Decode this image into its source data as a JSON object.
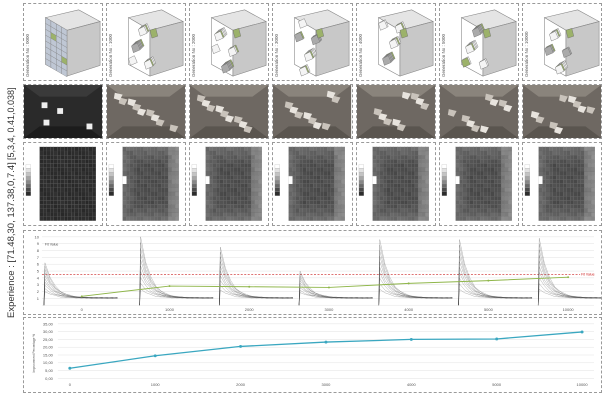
{
  "side_labels": {
    "experience": "Experience : [71.48,30, 137.38,0,7.4]",
    "top": "[5,3,4, 0.41,0.038]"
  },
  "generations": [
    "Generation No : 0000",
    "Generation No : 1000",
    "Generation No : 2000",
    "Generation No : 3000",
    "Generation No : 4000",
    "Generation No : 5000",
    "Generation No : 10000"
  ],
  "fitness_chart": {
    "ylabel": "Fit Value",
    "threshold_label": "Fit Value",
    "yticks": [
      "10",
      "9",
      "8",
      "7",
      "6",
      "5",
      "4",
      "3",
      "2",
      "1"
    ],
    "xticks": [
      "0",
      "1000",
      "2000",
      "3000",
      "4000",
      "5000",
      "10000"
    ],
    "colors": {
      "spikes": "#444444",
      "trend": "#8fb64a",
      "threshold": "#cc2222"
    }
  },
  "chart_data": [
    {
      "type": "line",
      "title": "",
      "xlabel": "",
      "ylabel": "Fit Value",
      "categories": [
        "0",
        "1000",
        "2000",
        "3000",
        "4000",
        "5000",
        "10000"
      ],
      "series": [
        {
          "values": [
            1.3,
            2.8,
            2.7,
            2.6,
            3.2,
            3.6,
            4.1
          ]
        }
      ],
      "spike_peaks": [
        6.2,
        10.0,
        8.5,
        5.0,
        9.6,
        9.6,
        9.8
      ],
      "threshold": 4.5,
      "ylim": [
        0,
        10
      ],
      "grid": true
    },
    {
      "type": "line",
      "title": "",
      "xlabel": "",
      "ylabel": "Improvement Percentage %",
      "categories": [
        "0",
        "1000",
        "2000",
        "3000",
        "4000",
        "5000",
        "10000"
      ],
      "series": [
        {
          "values": [
            6.5,
            14.5,
            20.5,
            23.3,
            25.0,
            25.3,
            29.8
          ]
        }
      ],
      "yticks": [
        "35,00",
        "30,00",
        "25,00",
        "20,00",
        "15,00",
        "10,00",
        "5,00",
        "0,00"
      ],
      "ylim": [
        0,
        35
      ],
      "grid": true,
      "color": "#3aa7c0"
    }
  ]
}
